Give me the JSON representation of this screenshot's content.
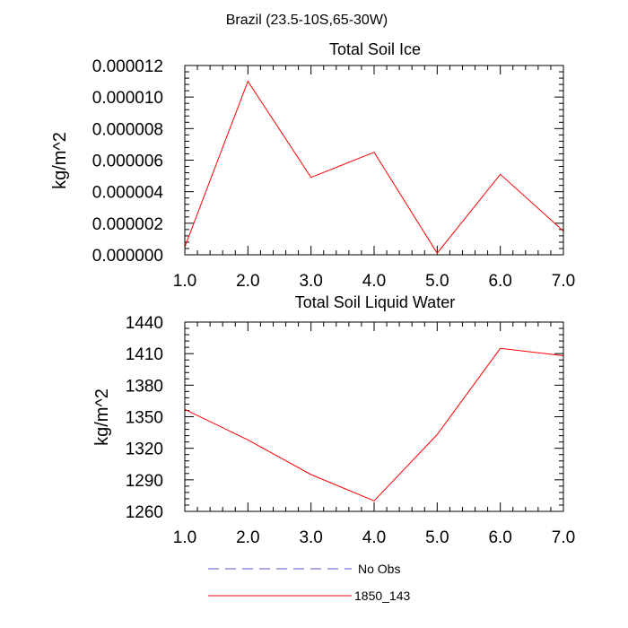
{
  "figure_title": "Brazil (23.5-10S,65-30W)",
  "legend": [
    {
      "label": "No Obs",
      "color": "#5a5ac8",
      "dash": true
    },
    {
      "label": "1850_143",
      "color": "#ff0000",
      "dash": false
    }
  ],
  "chart_data": [
    {
      "type": "line",
      "title": "Total Soil Ice",
      "ylabel": "kg/m^2",
      "xlabel": "",
      "x": [
        1,
        2,
        3,
        4,
        5,
        6,
        7
      ],
      "xlim": [
        1,
        7
      ],
      "ylim": [
        0,
        1.2e-05
      ],
      "xticks": [
        "1.0",
        "2.0",
        "3.0",
        "4.0",
        "5.0",
        "6.0",
        "7.0"
      ],
      "yticks": [
        {
          "v": 0,
          "label": "0.000000"
        },
        {
          "v": 2e-06,
          "label": "0.000002"
        },
        {
          "v": 4e-06,
          "label": "0.000004"
        },
        {
          "v": 6e-06,
          "label": "0.000006"
        },
        {
          "v": 8e-06,
          "label": "0.000008"
        },
        {
          "v": 1e-05,
          "label": "0.000010"
        },
        {
          "v": 1.2e-05,
          "label": "0.000012"
        }
      ],
      "series": [
        {
          "name": "1850_143",
          "color": "#ff0000",
          "values": [
            5e-07,
            1.1e-05,
            4.9e-06,
            6.5e-06,
            1e-07,
            5.1e-06,
            1.5e-06
          ]
        }
      ]
    },
    {
      "type": "line",
      "title": "Total Soil Liquid Water",
      "ylabel": "kg/m^2",
      "xlabel": "",
      "x": [
        1,
        2,
        3,
        4,
        5,
        6,
        7
      ],
      "xlim": [
        1,
        7
      ],
      "ylim": [
        1260,
        1440
      ],
      "xticks": [
        "1.0",
        "2.0",
        "3.0",
        "4.0",
        "5.0",
        "6.0",
        "7.0"
      ],
      "yticks": [
        {
          "v": 1260,
          "label": "1260"
        },
        {
          "v": 1290,
          "label": "1290"
        },
        {
          "v": 1320,
          "label": "1320"
        },
        {
          "v": 1350,
          "label": "1350"
        },
        {
          "v": 1380,
          "label": "1380"
        },
        {
          "v": 1410,
          "label": "1410"
        },
        {
          "v": 1440,
          "label": "1440"
        }
      ],
      "series": [
        {
          "name": "1850_143",
          "color": "#ff0000",
          "values": [
            1357,
            1328,
            1295,
            1270,
            1333,
            1415,
            1408
          ]
        }
      ]
    }
  ]
}
